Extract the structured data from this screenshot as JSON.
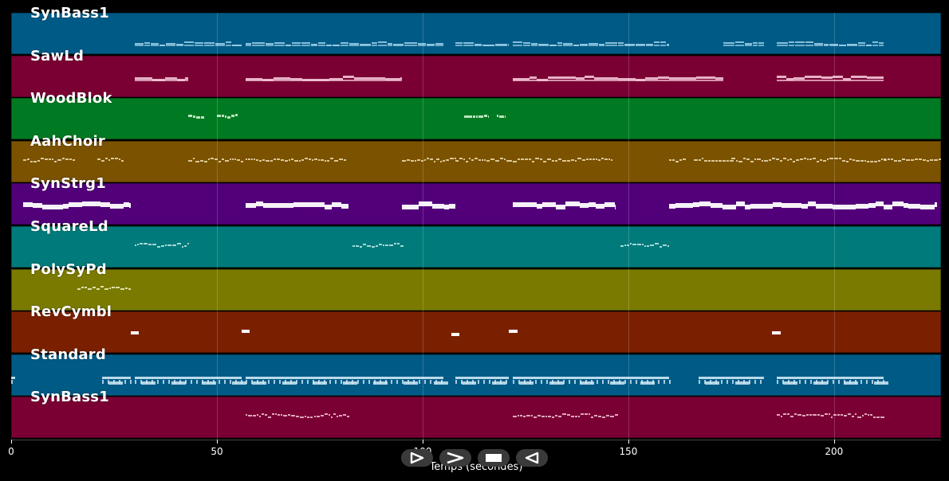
{
  "xaxis": {
    "label": "Temps (secondes)",
    "ticks": [
      0,
      50,
      100,
      150,
      200
    ],
    "range": [
      0,
      226
    ]
  },
  "tracks": [
    {
      "name": "SynBass1",
      "color": "#005a86",
      "note_color": "#9fd2ea",
      "style": "dense",
      "segments": [
        [
          30,
          56
        ],
        [
          57,
          105
        ],
        [
          108,
          121
        ],
        [
          122,
          160
        ],
        [
          173,
          183
        ],
        [
          186,
          212
        ]
      ]
    },
    {
      "name": "SawLd",
      "color": "#7a0033",
      "note_color": "#f2c4d6",
      "style": "thick",
      "segments": [
        [
          30,
          43
        ],
        [
          57,
          95
        ],
        [
          122,
          160
        ],
        [
          160,
          173
        ],
        [
          186,
          212
        ]
      ]
    },
    {
      "name": "WoodBlok",
      "color": "#007a22",
      "note_color": "#cfeecf",
      "style": "sparse",
      "segments": [
        [
          43,
          47
        ],
        [
          50,
          55
        ],
        [
          110,
          111
        ],
        [
          111,
          116
        ],
        [
          118,
          120
        ]
      ]
    },
    {
      "name": "AahChoir",
      "color": "#7a5200",
      "note_color": "#f0dcb0",
      "style": "dots",
      "segments": [
        [
          3,
          15
        ],
        [
          21,
          27
        ],
        [
          43,
          56
        ],
        [
          57,
          81
        ],
        [
          95,
          108
        ],
        [
          108,
          121
        ],
        [
          121,
          146
        ],
        [
          160,
          164
        ],
        [
          166,
          175
        ],
        [
          175,
          212
        ],
        [
          212,
          226
        ]
      ]
    },
    {
      "name": "SynStrg1",
      "color": "#52007a",
      "note_color": "#ffffff",
      "style": "block",
      "segments": [
        [
          3,
          29
        ],
        [
          57,
          82
        ],
        [
          95,
          108
        ],
        [
          122,
          147
        ],
        [
          160,
          212
        ],
        [
          212,
          225
        ]
      ]
    },
    {
      "name": "SquareLd",
      "color": "#007a7a",
      "note_color": "#bfeaea",
      "style": "dots",
      "segments": [
        [
          30,
          43
        ],
        [
          83,
          95
        ],
        [
          148,
          160
        ]
      ]
    },
    {
      "name": "PolySyPd",
      "color": "#7a7a00",
      "note_color": "#f0f0c8",
      "style": "dots",
      "segments": [
        [
          16,
          29
        ]
      ]
    },
    {
      "name": "RevCymbl",
      "color": "#7a2000",
      "note_color": "#ffffff",
      "style": "blip",
      "segments": [
        [
          29,
          31
        ],
        [
          56,
          58
        ],
        [
          107,
          109
        ],
        [
          121,
          123
        ],
        [
          185,
          187
        ]
      ]
    },
    {
      "name": "Standard",
      "color": "#005a86",
      "note_color": "#cfe8f5",
      "style": "drum",
      "segments": [
        [
          0,
          1
        ],
        [
          22,
          29
        ],
        [
          30,
          56
        ],
        [
          57,
          105
        ],
        [
          108,
          121
        ],
        [
          122,
          160
        ],
        [
          167,
          183
        ],
        [
          186,
          212
        ]
      ]
    },
    {
      "name": "SynBass1",
      "color": "#7a0033",
      "note_color": "#f2c4d6",
      "style": "dots",
      "segments": [
        [
          57,
          82
        ],
        [
          122,
          147
        ],
        [
          186,
          212
        ]
      ]
    }
  ],
  "controls": [
    {
      "name": "play-button"
    },
    {
      "name": "forward-button"
    },
    {
      "name": "stop-button"
    },
    {
      "name": "rewind-button"
    }
  ]
}
